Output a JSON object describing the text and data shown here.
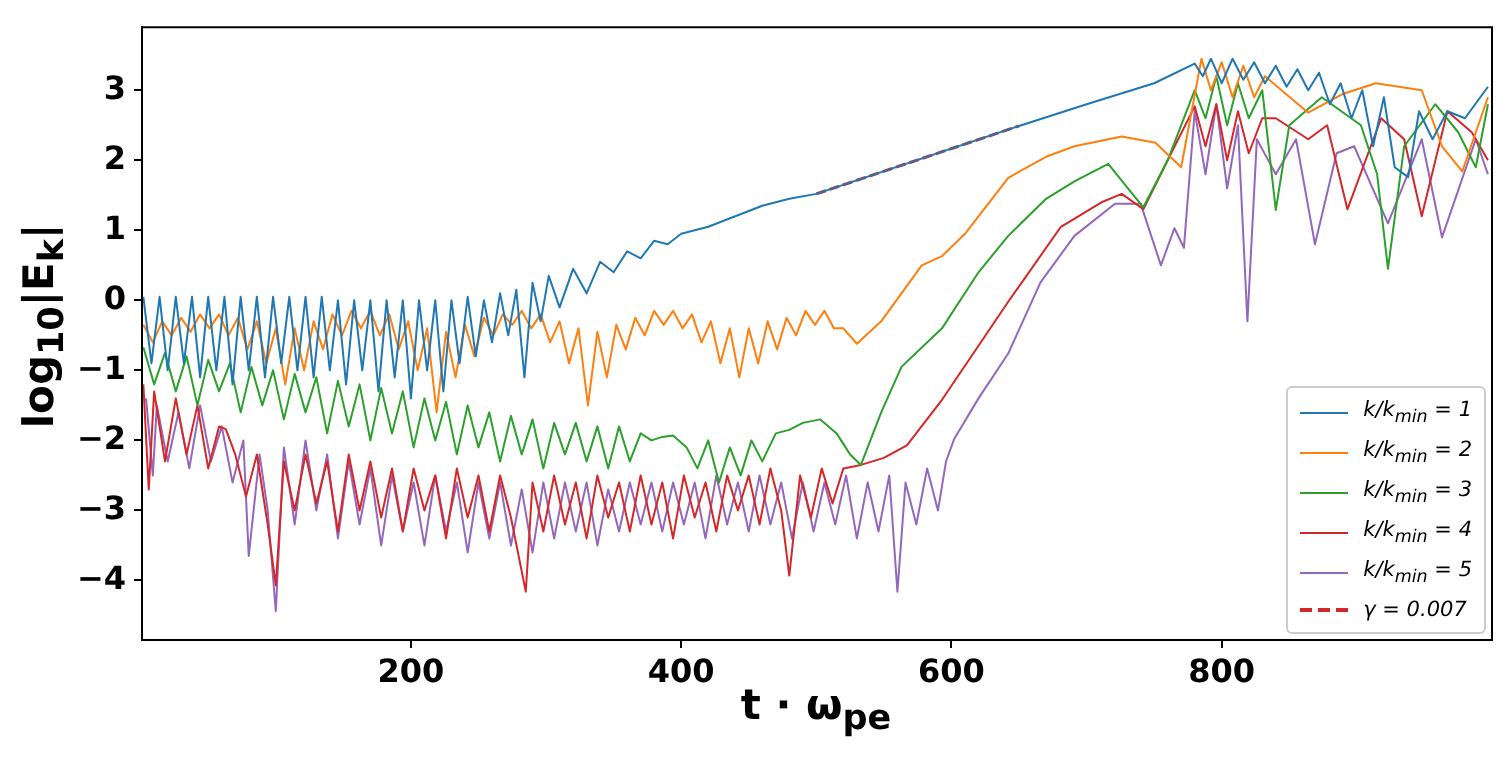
{
  "chart_data": {
    "type": "line",
    "xlabel": "t · ω$_{pe}$",
    "ylabel": "log$_{10}$|E$_{k}$|",
    "xlim": [
      1,
      1000
    ],
    "xticks": [
      200,
      400,
      600,
      800
    ],
    "ylim": [
      -4.85,
      3.9
    ],
    "yticks": [
      -4,
      -3,
      -2,
      -1,
      0,
      1,
      2,
      3
    ],
    "grid": false,
    "legend": "bottom right",
    "marker": "none",
    "line_style": "solid",
    "series": [
      {
        "name": "k/k$_{min}$ = 1",
        "color": "#1f77b4",
        "x": [
          2,
          8,
          14,
          20,
          26,
          32,
          38,
          44,
          50,
          56,
          62,
          68,
          74,
          80,
          86,
          92,
          98,
          104,
          110,
          116,
          122,
          128,
          134,
          140,
          146,
          152,
          158,
          164,
          170,
          176,
          182,
          188,
          194,
          200,
          206,
          212,
          218,
          224,
          230,
          236,
          242,
          248,
          254,
          260,
          266,
          272,
          278,
          284,
          290,
          296,
          302,
          310,
          320,
          330,
          340,
          350,
          360,
          370,
          380,
          390,
          400,
          420,
          440,
          460,
          480,
          500,
          650,
          700,
          750,
          780,
          786,
          792,
          800,
          808,
          816,
          824,
          832,
          840,
          848,
          856,
          864,
          872,
          880,
          888,
          896,
          904,
          912,
          920,
          928,
          938,
          946,
          956,
          967,
          980,
          997
        ],
        "values": [
          0.05,
          -0.9,
          0.05,
          -1.0,
          0.05,
          -0.9,
          0.05,
          -1.1,
          0.05,
          -1.0,
          0.05,
          -1.2,
          0.05,
          -1.0,
          0.05,
          -1.1,
          0.05,
          -0.9,
          0.05,
          -1.0,
          0.05,
          -1.1,
          0.05,
          -1.0,
          0.0,
          -1.2,
          0.0,
          -1.0,
          0.0,
          -1.3,
          0.0,
          -1.1,
          0.0,
          -1.4,
          0.0,
          -1.0,
          0.0,
          -1.3,
          0.0,
          -0.9,
          0.05,
          -0.8,
          0.0,
          -0.6,
          0.1,
          -0.5,
          0.15,
          -1.1,
          0.25,
          -0.3,
          0.35,
          -0.1,
          0.45,
          0.1,
          0.55,
          0.4,
          0.7,
          0.6,
          0.85,
          0.8,
          0.95,
          1.05,
          1.2,
          1.35,
          1.45,
          1.52,
          2.49,
          2.8,
          3.1,
          3.38,
          3.2,
          3.45,
          3.1,
          3.45,
          3.15,
          3.4,
          3.1,
          3.35,
          3.05,
          3.3,
          3.0,
          3.25,
          2.8,
          3.1,
          2.6,
          3.0,
          2.2,
          2.9,
          1.9,
          1.76,
          2.7,
          2.3,
          2.7,
          2.6,
          3.05
        ]
      },
      {
        "name": "k/k$_{min}$ = 2",
        "color": "#ff7f0e",
        "x": [
          2,
          9,
          16,
          23,
          30,
          37,
          44,
          51,
          58,
          65,
          72,
          79,
          86,
          93,
          100,
          107,
          114,
          121,
          128,
          135,
          142,
          149,
          156,
          163,
          170,
          177,
          184,
          191,
          198,
          205,
          212,
          219,
          226,
          233,
          240,
          247,
          254,
          261,
          268,
          275,
          282,
          289,
          296,
          303,
          310,
          317,
          324,
          331,
          338,
          345,
          352,
          359,
          366,
          373,
          380,
          387,
          394,
          401,
          408,
          415,
          422,
          429,
          436,
          443,
          450,
          457,
          464,
          471,
          478,
          485,
          492,
          499,
          506,
          513,
          520,
          530,
          548,
          578,
          593,
          610,
          642,
          670,
          691,
          726,
          751,
          770,
          785,
          792,
          800,
          808,
          816,
          824,
          832,
          864,
          890,
          914,
          948,
          963,
          978,
          997
        ],
        "values": [
          -0.35,
          -0.6,
          -0.3,
          -0.5,
          -0.25,
          -0.45,
          -0.2,
          -0.4,
          -0.2,
          -0.5,
          -0.25,
          -0.7,
          -0.3,
          -0.9,
          -0.4,
          -1.2,
          -0.4,
          -1.0,
          -0.3,
          -0.7,
          -0.2,
          -0.5,
          -0.15,
          -0.4,
          -0.15,
          -0.5,
          -0.2,
          -0.7,
          -0.3,
          -1.0,
          -0.4,
          -1.6,
          -0.45,
          -1.1,
          -0.35,
          -0.8,
          -0.25,
          -0.5,
          -0.2,
          -0.35,
          -0.15,
          -0.4,
          -0.2,
          -0.6,
          -0.3,
          -0.9,
          -0.4,
          -1.5,
          -0.45,
          -1.1,
          -0.35,
          -0.7,
          -0.25,
          -0.5,
          -0.15,
          -0.35,
          -0.15,
          -0.4,
          -0.2,
          -0.6,
          -0.3,
          -0.9,
          -0.4,
          -1.1,
          -0.4,
          -0.9,
          -0.3,
          -0.7,
          -0.25,
          -0.5,
          -0.15,
          -0.35,
          -0.15,
          -0.4,
          -0.4,
          -0.62,
          -0.3,
          0.5,
          0.63,
          0.95,
          1.75,
          2.05,
          2.2,
          2.34,
          2.25,
          1.9,
          3.45,
          3.0,
          3.4,
          2.9,
          3.35,
          2.9,
          3.2,
          2.68,
          2.95,
          3.1,
          3.0,
          2.2,
          1.84,
          2.9
        ]
      },
      {
        "name": "k/k$_{min}$ = 3",
        "color": "#2ca02c",
        "x": [
          2,
          10,
          18,
          26,
          34,
          42,
          50,
          58,
          66,
          74,
          82,
          90,
          98,
          106,
          114,
          122,
          130,
          138,
          146,
          154,
          162,
          170,
          178,
          186,
          194,
          202,
          210,
          218,
          226,
          234,
          242,
          250,
          258,
          266,
          274,
          282,
          290,
          298,
          306,
          314,
          322,
          330,
          338,
          346,
          354,
          362,
          370,
          378,
          386,
          394,
          404,
          412,
          420,
          428,
          436,
          444,
          452,
          460,
          470,
          480,
          490,
          503,
          515,
          525,
          533,
          548,
          563,
          593,
          620,
          642,
          670,
          691,
          716,
          736,
          742,
          760,
          780,
          788,
          796,
          804,
          812,
          820,
          830,
          840,
          850,
          874,
          903,
          915,
          923,
          935,
          958,
          975,
          988,
          997
        ],
        "values": [
          -0.67,
          -1.2,
          -0.75,
          -1.3,
          -0.8,
          -1.5,
          -0.85,
          -1.3,
          -0.9,
          -1.6,
          -0.95,
          -1.5,
          -1.0,
          -1.7,
          -1.05,
          -1.6,
          -1.1,
          -1.9,
          -1.15,
          -1.8,
          -1.2,
          -2.0,
          -1.25,
          -1.9,
          -1.3,
          -2.1,
          -1.4,
          -2.0,
          -1.45,
          -2.2,
          -1.5,
          -2.1,
          -1.6,
          -2.3,
          -1.65,
          -2.2,
          -1.7,
          -2.4,
          -1.75,
          -2.2,
          -1.75,
          -2.3,
          -1.8,
          -2.4,
          -1.8,
          -2.3,
          -1.9,
          -2.0,
          -1.95,
          -1.93,
          -2.1,
          -2.4,
          -2.0,
          -2.6,
          -2.1,
          -2.5,
          -2.0,
          -2.3,
          -1.9,
          -1.85,
          -1.75,
          -1.7,
          -1.9,
          -2.2,
          -2.35,
          -1.6,
          -0.95,
          -0.4,
          0.4,
          0.92,
          1.45,
          1.7,
          1.95,
          1.47,
          1.33,
          2.0,
          3.0,
          2.6,
          3.2,
          2.5,
          3.1,
          2.6,
          3.0,
          1.29,
          2.5,
          2.9,
          2.5,
          1.8,
          0.45,
          2.2,
          2.8,
          2.4,
          1.9,
          2.8
        ]
      },
      {
        "name": "k/k$_{min}$ = 4",
        "color": "#d62728",
        "x": [
          2,
          6,
          10,
          18,
          26,
          34,
          42,
          50,
          58,
          63,
          70,
          78,
          86,
          94,
          100,
          106,
          114,
          122,
          130,
          138,
          146,
          154,
          162,
          170,
          178,
          186,
          194,
          202,
          210,
          218,
          226,
          234,
          242,
          250,
          258,
          266,
          274,
          285,
          290,
          298,
          306,
          314,
          322,
          330,
          338,
          346,
          354,
          362,
          370,
          378,
          386,
          394,
          402,
          410,
          418,
          426,
          434,
          442,
          450,
          458,
          466,
          474,
          480,
          488,
          496,
          504,
          512,
          520,
          533,
          550,
          567,
          593,
          642,
          681,
          711,
          726,
          742,
          760,
          780,
          788,
          796,
          804,
          812,
          820,
          830,
          840,
          864,
          878,
          893,
          918,
          935,
          948,
          967,
          985,
          997
        ],
        "values": [
          -1.2,
          -2.7,
          -1.3,
          -2.3,
          -1.4,
          -2.2,
          -1.5,
          -2.4,
          -1.8,
          -1.84,
          -2.2,
          -2.8,
          -2.2,
          -3.2,
          -4.07,
          -2.3,
          -3.0,
          -2.2,
          -2.9,
          -2.3,
          -3.3,
          -2.2,
          -3.0,
          -2.3,
          -3.1,
          -2.4,
          -3.3,
          -2.4,
          -3.0,
          -2.5,
          -3.4,
          -2.4,
          -3.1,
          -2.5,
          -3.3,
          -2.5,
          -3.1,
          -4.16,
          -2.6,
          -3.3,
          -2.5,
          -3.2,
          -2.6,
          -3.4,
          -2.5,
          -3.1,
          -2.6,
          -3.3,
          -2.5,
          -3.2,
          -2.6,
          -3.4,
          -2.5,
          -3.1,
          -2.6,
          -3.3,
          -2.5,
          -3.0,
          -2.5,
          -3.2,
          -2.4,
          -3.0,
          -3.93,
          -2.5,
          -3.1,
          -2.4,
          -2.9,
          -2.4,
          -2.35,
          -2.25,
          -2.07,
          -1.42,
          -0.02,
          1.05,
          1.4,
          1.52,
          1.3,
          2.0,
          2.77,
          2.2,
          2.8,
          2.0,
          2.7,
          2.1,
          2.6,
          2.6,
          2.3,
          2.5,
          1.3,
          2.6,
          2.3,
          1.2,
          2.7,
          2.4,
          2.0
        ]
      },
      {
        "name": "k/k$_{min}$ = 5",
        "color": "#9467bd",
        "x": [
          4,
          9,
          12,
          20,
          28,
          36,
          44,
          52,
          60,
          68,
          76,
          80,
          88,
          94,
          100,
          106,
          114,
          122,
          130,
          138,
          146,
          154,
          162,
          170,
          178,
          186,
          194,
          202,
          210,
          218,
          226,
          234,
          242,
          250,
          258,
          266,
          274,
          282,
          290,
          298,
          306,
          314,
          322,
          330,
          338,
          346,
          354,
          362,
          370,
          378,
          386,
          394,
          402,
          410,
          418,
          426,
          434,
          442,
          450,
          458,
          466,
          474,
          482,
          490,
          498,
          506,
          514,
          522,
          530,
          538,
          546,
          554,
          560,
          566,
          574,
          582,
          590,
          596,
          602,
          620,
          642,
          666,
          691,
          721,
          740,
          755,
          765,
          772,
          780,
          788,
          796,
          804,
          812,
          819,
          826,
          840,
          855,
          869,
          885,
          898,
          923,
          948,
          963,
          988,
          997
        ],
        "values": [
          -1.4,
          -2.5,
          -1.5,
          -2.3,
          -1.6,
          -2.4,
          -1.5,
          -2.3,
          -1.8,
          -2.6,
          -2.0,
          -3.65,
          -2.2,
          -3.0,
          -4.44,
          -2.1,
          -3.2,
          -2.0,
          -3.0,
          -2.2,
          -3.4,
          -2.3,
          -3.2,
          -2.4,
          -3.5,
          -2.5,
          -3.3,
          -2.6,
          -3.5,
          -2.5,
          -3.3,
          -2.6,
          -3.6,
          -2.6,
          -3.4,
          -2.6,
          -3.5,
          -2.7,
          -3.6,
          -2.6,
          -3.4,
          -2.6,
          -3.3,
          -2.6,
          -3.5,
          -2.7,
          -3.3,
          -2.6,
          -3.2,
          -2.6,
          -3.3,
          -2.6,
          -3.2,
          -2.6,
          -3.4,
          -2.5,
          -3.2,
          -2.6,
          -3.3,
          -2.5,
          -3.2,
          -2.6,
          -3.4,
          -2.6,
          -3.3,
          -2.6,
          -3.2,
          -2.5,
          -3.4,
          -2.6,
          -3.3,
          -2.5,
          -4.16,
          -2.6,
          -3.2,
          -2.4,
          -3.0,
          -2.3,
          -1.98,
          -1.4,
          -0.76,
          0.26,
          0.92,
          1.38,
          1.38,
          0.5,
          1.03,
          0.75,
          2.7,
          1.8,
          2.8,
          1.6,
          2.5,
          -0.3,
          2.3,
          1.8,
          2.3,
          0.8,
          2.1,
          2.2,
          1.1,
          2.3,
          0.9,
          2.3,
          1.8
        ]
      },
      {
        "name": "γ = 0.007",
        "color": "#d62728",
        "line_style": "dashed",
        "x": [
          500,
          650
        ],
        "values": [
          1.52,
          2.49
        ]
      }
    ]
  }
}
